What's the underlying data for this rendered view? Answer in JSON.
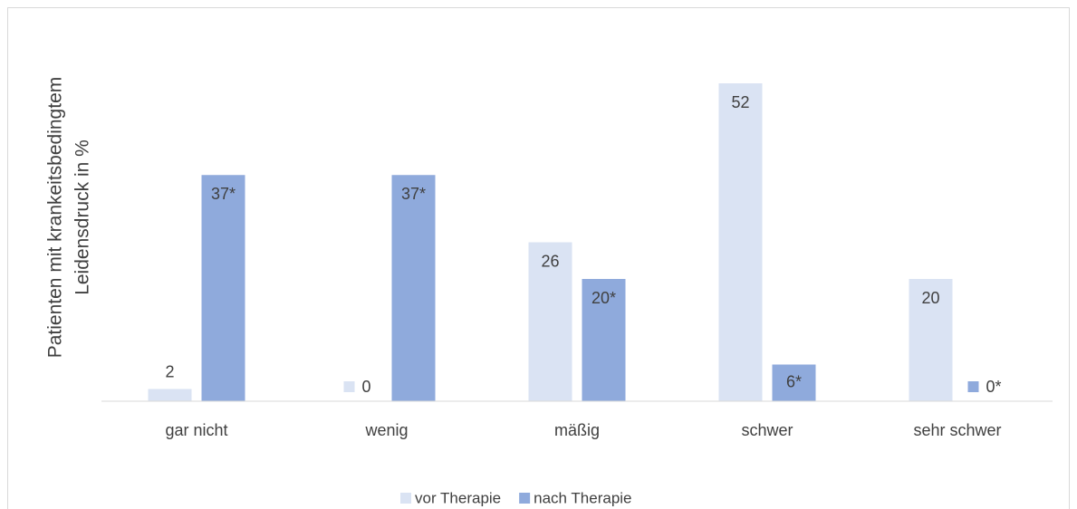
{
  "chart_data": {
    "type": "bar",
    "y_label": [
      "Patienten mit krankeitsbedingtem",
      "Leidensdruck in %"
    ],
    "categories": [
      "gar nicht",
      "wenig",
      "mäßig",
      "schwer",
      "sehr schwer"
    ],
    "series": [
      {
        "name": "vor Therapie",
        "color": "#dae3f3",
        "values": [
          2,
          0,
          26,
          52,
          20
        ]
      },
      {
        "name": "nach Therapie",
        "color": "#8faadc",
        "values": [
          37,
          37,
          20,
          6,
          0
        ],
        "value_labels": [
          "37*",
          "37*",
          "20*",
          "6*",
          "0*"
        ]
      }
    ],
    "ylim": [
      0,
      60
    ],
    "legend": "bottom"
  }
}
